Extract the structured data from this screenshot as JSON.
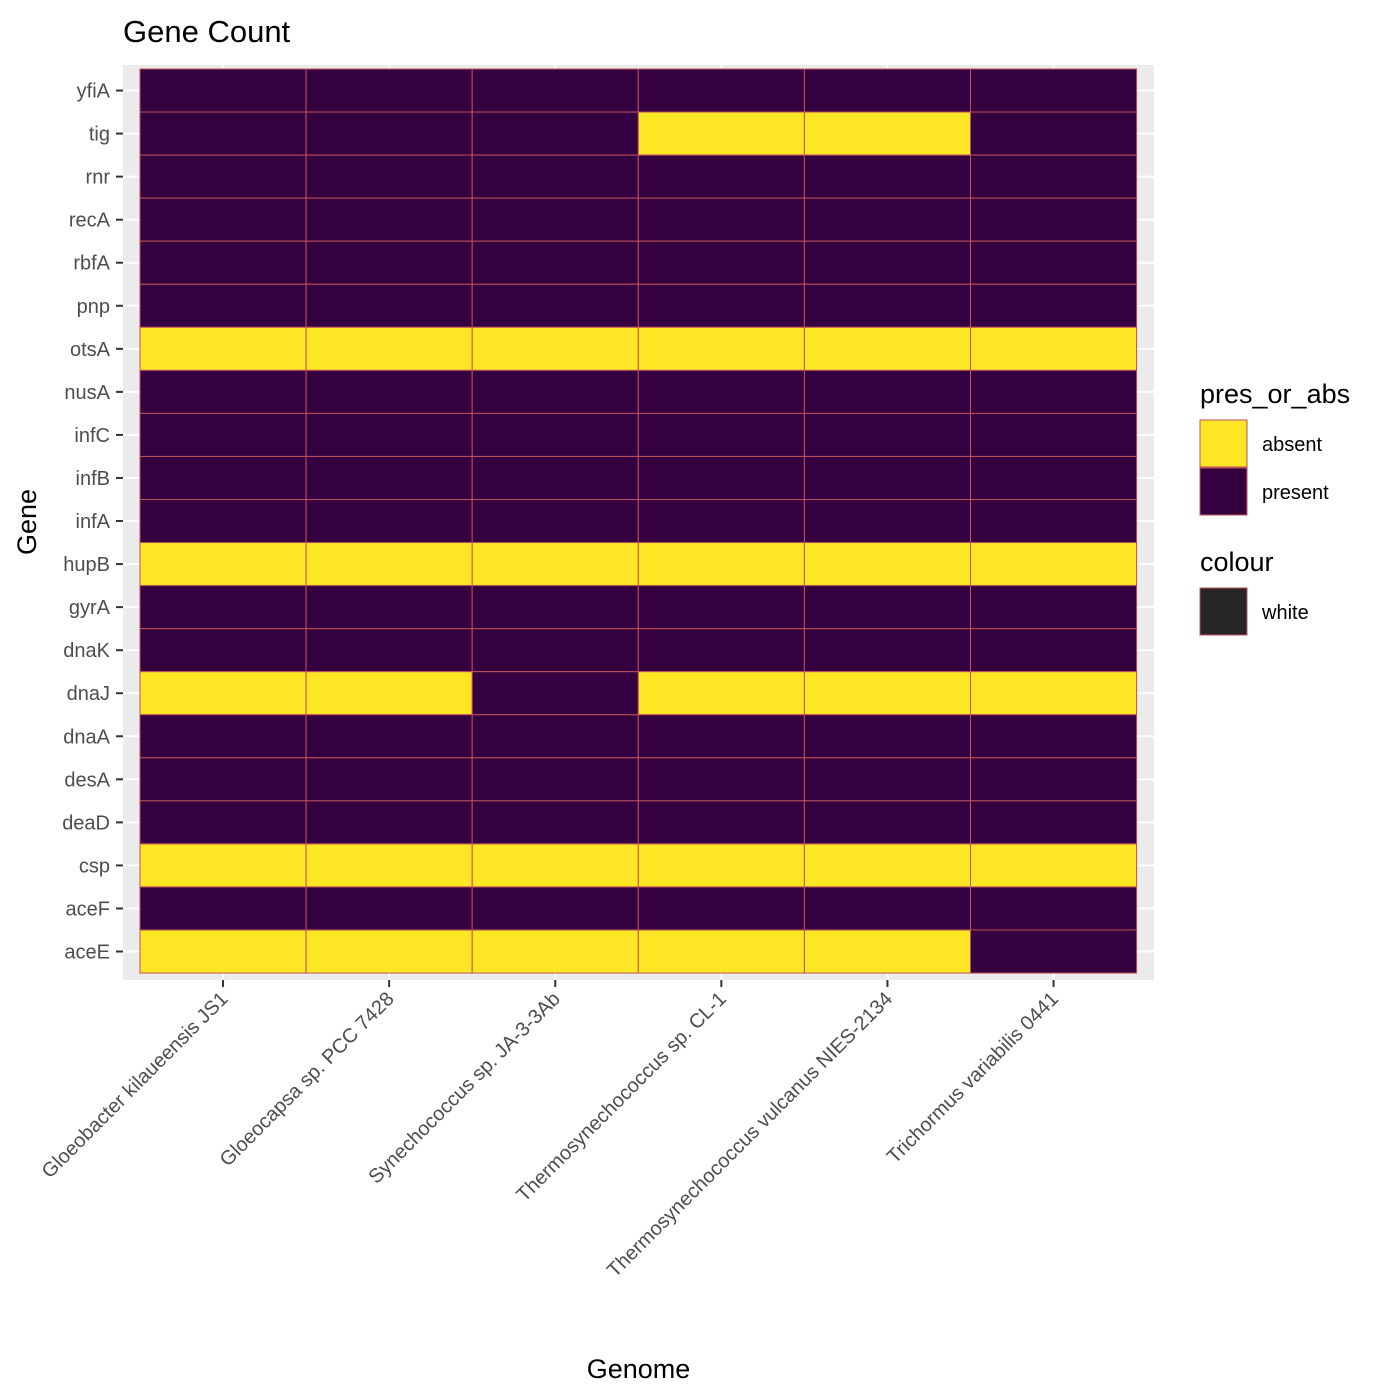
{
  "chart_data": {
    "type": "heatmap",
    "title": "Gene Count",
    "xlabel": "Genome",
    "ylabel": "Gene",
    "x": [
      "Gloeobacter kilaueensis JS1",
      "Gloeocapsa sp. PCC 7428",
      "Synechococcus sp. JA-3-3Ab",
      "Thermosynechococcus sp. CL-1",
      "Thermosynechococcus vulcanus NIES-2134",
      "Trichormus variabilis 0441"
    ],
    "y": [
      "yfiA",
      "tig",
      "rnr",
      "recA",
      "rbfA",
      "pnp",
      "otsA",
      "nusA",
      "infC",
      "infB",
      "infA",
      "hupB",
      "gyrA",
      "dnaK",
      "dnaJ",
      "dnaA",
      "desA",
      "deaD",
      "csp",
      "aceF",
      "aceE"
    ],
    "values": [
      [
        "present",
        "present",
        "present",
        "present",
        "present",
        "present"
      ],
      [
        "present",
        "present",
        "present",
        "absent",
        "absent",
        "present"
      ],
      [
        "present",
        "present",
        "present",
        "present",
        "present",
        "present"
      ],
      [
        "present",
        "present",
        "present",
        "present",
        "present",
        "present"
      ],
      [
        "present",
        "present",
        "present",
        "present",
        "present",
        "present"
      ],
      [
        "present",
        "present",
        "present",
        "present",
        "present",
        "present"
      ],
      [
        "absent",
        "absent",
        "absent",
        "absent",
        "absent",
        "absent"
      ],
      [
        "present",
        "present",
        "present",
        "present",
        "present",
        "present"
      ],
      [
        "present",
        "present",
        "present",
        "present",
        "present",
        "present"
      ],
      [
        "present",
        "present",
        "present",
        "present",
        "present",
        "present"
      ],
      [
        "present",
        "present",
        "present",
        "present",
        "present",
        "present"
      ],
      [
        "absent",
        "absent",
        "absent",
        "absent",
        "absent",
        "absent"
      ],
      [
        "present",
        "present",
        "present",
        "present",
        "present",
        "present"
      ],
      [
        "present",
        "present",
        "present",
        "present",
        "present",
        "present"
      ],
      [
        "absent",
        "absent",
        "present",
        "absent",
        "absent",
        "absent"
      ],
      [
        "present",
        "present",
        "present",
        "present",
        "present",
        "present"
      ],
      [
        "present",
        "present",
        "present",
        "present",
        "present",
        "present"
      ],
      [
        "present",
        "present",
        "present",
        "present",
        "present",
        "present"
      ],
      [
        "absent",
        "absent",
        "absent",
        "absent",
        "absent",
        "absent"
      ],
      [
        "present",
        "present",
        "present",
        "present",
        "present",
        "present"
      ],
      [
        "absent",
        "absent",
        "absent",
        "absent",
        "absent",
        "present"
      ]
    ],
    "fill_colors": {
      "absent": "#FDE725",
      "present": "#35003F"
    },
    "tile_border_color": "#C0505A",
    "legends": [
      {
        "title": "pres_or_abs",
        "entries": [
          {
            "label": "absent",
            "color": "#FDE725"
          },
          {
            "label": "present",
            "color": "#35003F"
          }
        ]
      },
      {
        "title": "colour",
        "entries": [
          {
            "label": "white",
            "color": "#262626"
          }
        ]
      }
    ],
    "legend_position": "right",
    "panel_background": "#EBEBEB",
    "grid": true
  }
}
